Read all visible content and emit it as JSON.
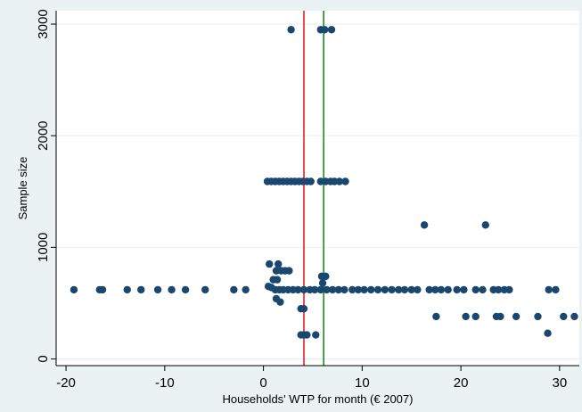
{
  "chart_data": {
    "type": "scatter",
    "xlabel": "Households' WTP for month (€ 2007)",
    "ylabel": "Sample size",
    "xlim": [
      -21,
      32
    ],
    "ylim": [
      -60,
      3120
    ],
    "x_ticks": [
      -20,
      -10,
      0,
      10,
      20,
      30
    ],
    "y_ticks": [
      0,
      1000,
      2000,
      3000
    ],
    "grid": "horizontal",
    "colors": {
      "background": "#eaf2f3",
      "plot_background": "#ffffff",
      "grid": "#e8eef0",
      "points": "#1a476f",
      "red_line": "#e8202a",
      "green_line": "#1e8c1e"
    },
    "reference_lines": [
      {
        "x": 4.1,
        "color": "#e8202a"
      },
      {
        "x": 6.1,
        "color": "#1e8c1e"
      }
    ],
    "points": [
      {
        "x": 2.8,
        "y": 2950
      },
      {
        "x": 5.8,
        "y": 2950
      },
      {
        "x": 6.2,
        "y": 2950
      },
      {
        "x": 6.9,
        "y": 2950
      },
      {
        "x": 0.4,
        "y": 1590
      },
      {
        "x": 0.8,
        "y": 1590
      },
      {
        "x": 1.2,
        "y": 1590
      },
      {
        "x": 1.6,
        "y": 1590
      },
      {
        "x": 2.0,
        "y": 1590
      },
      {
        "x": 2.4,
        "y": 1590
      },
      {
        "x": 2.8,
        "y": 1590
      },
      {
        "x": 3.2,
        "y": 1590
      },
      {
        "x": 3.6,
        "y": 1590
      },
      {
        "x": 4.0,
        "y": 1590
      },
      {
        "x": 4.4,
        "y": 1590
      },
      {
        "x": 4.8,
        "y": 1590
      },
      {
        "x": 5.8,
        "y": 1590
      },
      {
        "x": 6.3,
        "y": 1590
      },
      {
        "x": 6.8,
        "y": 1590
      },
      {
        "x": 7.2,
        "y": 1590
      },
      {
        "x": 7.7,
        "y": 1590
      },
      {
        "x": 8.3,
        "y": 1590
      },
      {
        "x": 16.3,
        "y": 1200
      },
      {
        "x": 22.5,
        "y": 1200
      },
      {
        "x": 0.6,
        "y": 850
      },
      {
        "x": 1.5,
        "y": 850
      },
      {
        "x": 1.3,
        "y": 790
      },
      {
        "x": 1.8,
        "y": 790
      },
      {
        "x": 2.2,
        "y": 790
      },
      {
        "x": 2.6,
        "y": 790
      },
      {
        "x": 5.9,
        "y": 740
      },
      {
        "x": 6.3,
        "y": 740
      },
      {
        "x": 1.0,
        "y": 710
      },
      {
        "x": 1.4,
        "y": 710
      },
      {
        "x": 6.0,
        "y": 680
      },
      {
        "x": 0.5,
        "y": 650
      },
      {
        "x": 0.8,
        "y": 640
      },
      {
        "x": -19.2,
        "y": 620
      },
      {
        "x": -16.6,
        "y": 620
      },
      {
        "x": -16.3,
        "y": 620
      },
      {
        "x": -13.8,
        "y": 620
      },
      {
        "x": -12.4,
        "y": 620
      },
      {
        "x": -10.7,
        "y": 620
      },
      {
        "x": -9.3,
        "y": 620
      },
      {
        "x": -7.9,
        "y": 620
      },
      {
        "x": -5.9,
        "y": 620
      },
      {
        "x": -3.0,
        "y": 620
      },
      {
        "x": -1.8,
        "y": 620
      },
      {
        "x": 1.2,
        "y": 620
      },
      {
        "x": 1.6,
        "y": 620
      },
      {
        "x": 2.0,
        "y": 620
      },
      {
        "x": 2.5,
        "y": 620
      },
      {
        "x": 3.0,
        "y": 620
      },
      {
        "x": 3.5,
        "y": 620
      },
      {
        "x": 4.1,
        "y": 620
      },
      {
        "x": 4.7,
        "y": 620
      },
      {
        "x": 5.2,
        "y": 620
      },
      {
        "x": 5.8,
        "y": 620
      },
      {
        "x": 6.4,
        "y": 620
      },
      {
        "x": 7.0,
        "y": 620
      },
      {
        "x": 7.6,
        "y": 620
      },
      {
        "x": 8.2,
        "y": 620
      },
      {
        "x": 9.0,
        "y": 620
      },
      {
        "x": 9.6,
        "y": 620
      },
      {
        "x": 10.2,
        "y": 620
      },
      {
        "x": 10.9,
        "y": 620
      },
      {
        "x": 11.6,
        "y": 620
      },
      {
        "x": 12.3,
        "y": 620
      },
      {
        "x": 13.0,
        "y": 620
      },
      {
        "x": 13.7,
        "y": 620
      },
      {
        "x": 14.3,
        "y": 620
      },
      {
        "x": 15.0,
        "y": 620
      },
      {
        "x": 15.6,
        "y": 620
      },
      {
        "x": 16.8,
        "y": 620
      },
      {
        "x": 17.4,
        "y": 620
      },
      {
        "x": 18.0,
        "y": 620
      },
      {
        "x": 18.7,
        "y": 620
      },
      {
        "x": 19.6,
        "y": 620
      },
      {
        "x": 20.3,
        "y": 620
      },
      {
        "x": 21.5,
        "y": 620
      },
      {
        "x": 22.2,
        "y": 620
      },
      {
        "x": 23.3,
        "y": 620
      },
      {
        "x": 23.8,
        "y": 620
      },
      {
        "x": 24.4,
        "y": 620
      },
      {
        "x": 24.9,
        "y": 620
      },
      {
        "x": 28.9,
        "y": 620
      },
      {
        "x": 29.6,
        "y": 620
      },
      {
        "x": 1.3,
        "y": 540
      },
      {
        "x": 1.7,
        "y": 510
      },
      {
        "x": 3.8,
        "y": 450
      },
      {
        "x": 4.1,
        "y": 450
      },
      {
        "x": 17.5,
        "y": 380
      },
      {
        "x": 20.5,
        "y": 380
      },
      {
        "x": 21.5,
        "y": 380
      },
      {
        "x": 23.6,
        "y": 380
      },
      {
        "x": 24.0,
        "y": 380
      },
      {
        "x": 25.6,
        "y": 380
      },
      {
        "x": 27.8,
        "y": 380
      },
      {
        "x": 30.4,
        "y": 380
      },
      {
        "x": 31.5,
        "y": 380
      },
      {
        "x": 28.8,
        "y": 230
      },
      {
        "x": 3.8,
        "y": 215
      },
      {
        "x": 4.1,
        "y": 215
      },
      {
        "x": 4.4,
        "y": 215
      },
      {
        "x": 5.3,
        "y": 215
      }
    ]
  }
}
